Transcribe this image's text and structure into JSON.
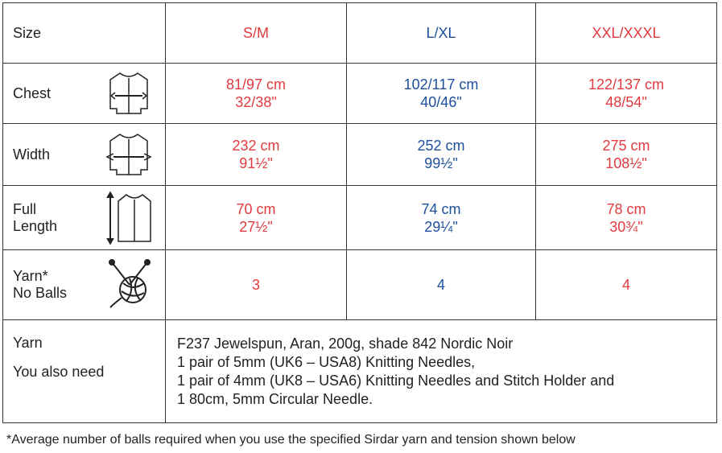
{
  "table": {
    "columns": [
      {
        "name": "Size"
      },
      {
        "name": "S/M",
        "color": "#e23a3f"
      },
      {
        "name": "L/XL",
        "color": "#1d4f9e"
      },
      {
        "name": "XXL/XXXL",
        "color": "#e23a3f"
      }
    ],
    "rows": [
      {
        "label": [
          "Chest"
        ],
        "cells": [
          [
            "81/97 cm",
            "32/38\""
          ],
          [
            "102/117 cm",
            "40/46\""
          ],
          [
            "122/137 cm",
            "48/54\""
          ]
        ]
      },
      {
        "label": [
          "Width"
        ],
        "cells": [
          [
            "232 cm",
            "91½\""
          ],
          [
            "252 cm",
            "99½\""
          ],
          [
            "275 cm",
            "108½\""
          ]
        ]
      },
      {
        "label": [
          "Full",
          "Length"
        ],
        "cells": [
          [
            "70 cm",
            "27½\""
          ],
          [
            "74 cm",
            "29¼\""
          ],
          [
            "78 cm",
            "30¾\""
          ]
        ]
      },
      {
        "label": [
          "Yarn*",
          "No Balls"
        ],
        "cells": [
          [
            "3"
          ],
          [
            "4"
          ],
          [
            "4"
          ]
        ]
      }
    ],
    "materials": {
      "labels": [
        "Yarn",
        "You also need"
      ],
      "lines": [
        "F237 Jewelspun, Aran, 200g, shade 842 Nordic Noir",
        "1 pair of 5mm (UK6 – USA8) Knitting Needles,",
        "1 pair of 4mm (UK8 – USA6) Knitting Needles and Stitch Holder and",
        "1 80cm, 5mm Circular Needle."
      ]
    }
  },
  "footnote": "*Average number of balls required when you use the specified Sirdar yarn and tension shown below"
}
